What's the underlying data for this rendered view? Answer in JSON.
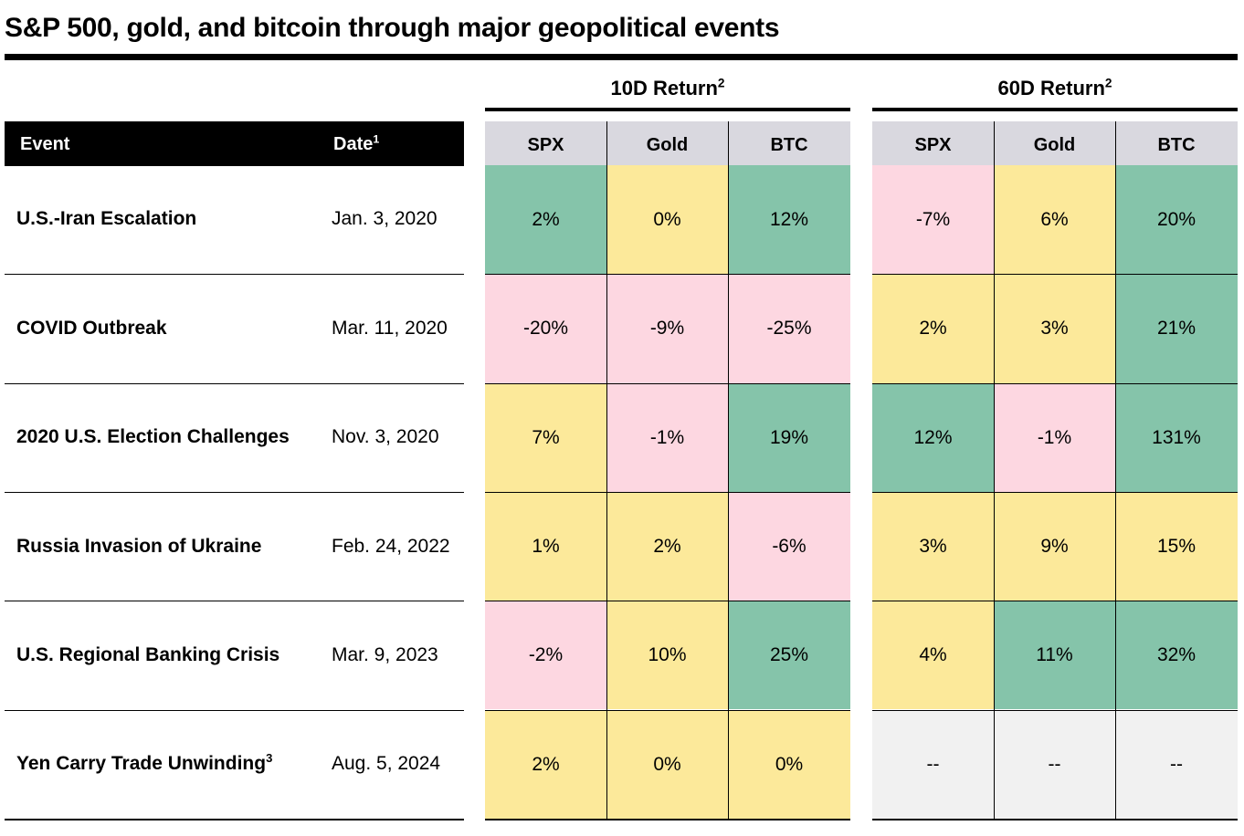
{
  "title": "S&P 500, gold, and bitcoin through major geopolitical events",
  "groups": [
    {
      "label": "10D Return",
      "sup": "2"
    },
    {
      "label": "60D Return",
      "sup": "2"
    }
  ],
  "headers": {
    "event": "Event",
    "date": "Date",
    "date_sup": "1",
    "assets": [
      "SPX",
      "Gold",
      "BTC"
    ]
  },
  "colors": {
    "positive_strong": "#85c4aa",
    "neutral_small": "#fce99a",
    "negative": "#fdd7e1",
    "na": "#f1f1f1",
    "header_bg": "#d9d8df"
  },
  "chart_data": {
    "type": "table",
    "title": "S&P 500, gold, and bitcoin through major geopolitical events",
    "columns": [
      "SPX 10D",
      "Gold 10D",
      "BTC 10D",
      "SPX 60D",
      "Gold 60D",
      "BTC 60D"
    ],
    "rows": [
      {
        "event": "U.S.-Iran Escalation",
        "event_sup": "",
        "date": "Jan. 3, 2020",
        "ret10": [
          "2%",
          "0%",
          "12%"
        ],
        "ret60": [
          "-7%",
          "6%",
          "20%"
        ],
        "c10": [
          "g",
          "y",
          "g"
        ],
        "c60": [
          "p",
          "y",
          "g"
        ]
      },
      {
        "event": "COVID Outbreak",
        "event_sup": "",
        "date": "Mar. 11, 2020",
        "ret10": [
          "-20%",
          "-9%",
          "-25%"
        ],
        "ret60": [
          "2%",
          "3%",
          "21%"
        ],
        "c10": [
          "p",
          "p",
          "p"
        ],
        "c60": [
          "y",
          "y",
          "g"
        ]
      },
      {
        "event": "2020 U.S. Election Challenges",
        "event_sup": "",
        "date": "Nov. 3, 2020",
        "ret10": [
          "7%",
          "-1%",
          "19%"
        ],
        "ret60": [
          "12%",
          "-1%",
          "131%"
        ],
        "c10": [
          "y",
          "p",
          "g"
        ],
        "c60": [
          "g",
          "p",
          "g"
        ]
      },
      {
        "event": "Russia Invasion of Ukraine",
        "event_sup": "",
        "date": "Feb. 24, 2022",
        "ret10": [
          "1%",
          "2%",
          "-6%"
        ],
        "ret60": [
          "3%",
          "9%",
          "15%"
        ],
        "c10": [
          "y",
          "y",
          "p"
        ],
        "c60": [
          "y",
          "y",
          "y"
        ]
      },
      {
        "event": "U.S. Regional Banking Crisis",
        "event_sup": "",
        "date": "Mar. 9, 2023",
        "ret10": [
          "-2%",
          "10%",
          "25%"
        ],
        "ret60": [
          "4%",
          "11%",
          "32%"
        ],
        "c10": [
          "p",
          "y",
          "g"
        ],
        "c60": [
          "y",
          "g",
          "g"
        ]
      },
      {
        "event": "Yen Carry Trade Unwinding",
        "event_sup": "3",
        "date": "Aug. 5, 2024",
        "ret10": [
          "2%",
          "0%",
          "0%"
        ],
        "ret60": [
          "--",
          "--",
          "--"
        ],
        "c10": [
          "y",
          "y",
          "y"
        ],
        "c60": [
          "n",
          "n",
          "n"
        ]
      }
    ]
  }
}
